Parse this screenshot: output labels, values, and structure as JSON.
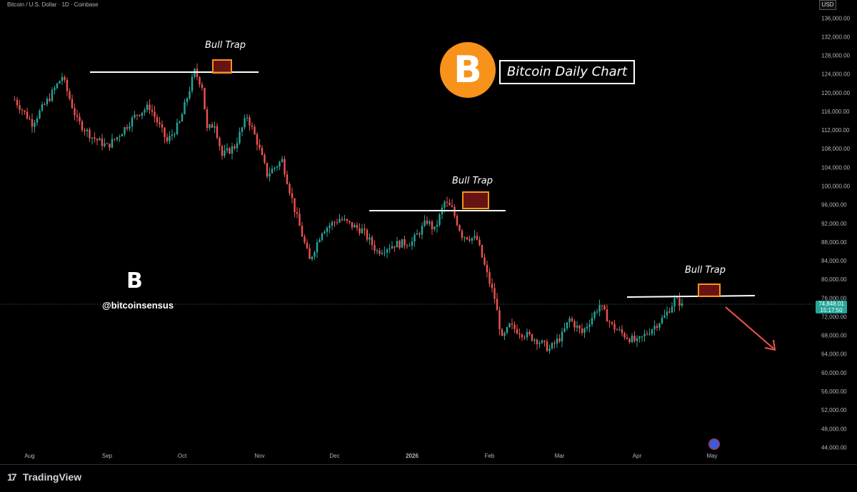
{
  "header": {
    "symbol": "Bitcoin / U.S. Dollar · 1D · Coinbase"
  },
  "currency": "USD",
  "last_price": {
    "value": "74,848.01",
    "countdown": "15:17:50"
  },
  "title_box": "Bitcoin Daily Chart",
  "coin_symbol": "B",
  "watermark": {
    "logo": "B",
    "handle": "@bitcoinsensus"
  },
  "trap_labels": [
    "Bull Trap",
    "Bull Trap",
    "Bull Trap"
  ],
  "footer": {
    "brand": "TradingView"
  },
  "colors": {
    "up": "#26a69a",
    "down": "#ef5350",
    "accent": "#f7931a",
    "trap_fill": "#8b1a1a"
  },
  "chart_data": {
    "type": "candlestick",
    "x_tick_labels": [
      "Aug",
      "Sep",
      "Oct",
      "Nov",
      "Dec",
      "2026",
      "Feb",
      "Mar",
      "Apr",
      "May"
    ],
    "y_ticks": [
      44000,
      48000,
      52000,
      56000,
      60000,
      64000,
      68000,
      72000,
      76000,
      80000,
      84000,
      88000,
      92000,
      96000,
      100000,
      104000,
      108000,
      112000,
      116000,
      120000,
      124000,
      128000,
      132000,
      136000
    ],
    "ylim": [
      42000,
      138000
    ],
    "grid": false,
    "last_close": 74848.01,
    "anchors": [
      [
        "2025-07-26",
        118500
      ],
      [
        "2025-08-02",
        113500
      ],
      [
        "2025-08-09",
        119000
      ],
      [
        "2025-08-14",
        123500
      ],
      [
        "2025-08-20",
        114000
      ],
      [
        "2025-08-26",
        110500
      ],
      [
        "2025-09-01",
        108500
      ],
      [
        "2025-09-05",
        110500
      ],
      [
        "2025-09-13",
        115500
      ],
      [
        "2025-09-18",
        117000
      ],
      [
        "2025-09-25",
        109500
      ],
      [
        "2025-09-30",
        113500
      ],
      [
        "2025-10-06",
        124500
      ],
      [
        "2025-10-09",
        121500
      ],
      [
        "2025-10-11",
        112000
      ],
      [
        "2025-10-14",
        113500
      ],
      [
        "2025-10-17",
        106500
      ],
      [
        "2025-10-22",
        108500
      ],
      [
        "2025-10-27",
        115000
      ],
      [
        "2025-10-31",
        109500
      ],
      [
        "2025-11-04",
        102500
      ],
      [
        "2025-11-10",
        105500
      ],
      [
        "2025-11-15",
        95000
      ],
      [
        "2025-11-21",
        84000
      ],
      [
        "2025-11-26",
        90500
      ],
      [
        "2025-12-03",
        93000
      ],
      [
        "2025-12-08",
        91500
      ],
      [
        "2025-12-12",
        90500
      ],
      [
        "2025-12-18",
        86000
      ],
      [
        "2025-12-25",
        87500
      ],
      [
        "2026-01-01",
        88000
      ],
      [
        "2026-01-07",
        92500
      ],
      [
        "2026-01-10",
        90500
      ],
      [
        "2026-01-14",
        96500
      ],
      [
        "2026-01-17",
        95000
      ],
      [
        "2026-01-21",
        89500
      ],
      [
        "2026-01-27",
        88500
      ],
      [
        "2026-01-31",
        81000
      ],
      [
        "2026-02-03",
        76000
      ],
      [
        "2026-02-06",
        67000
      ],
      [
        "2026-02-09",
        70000
      ],
      [
        "2026-02-14",
        68500
      ],
      [
        "2026-02-20",
        67000
      ],
      [
        "2026-02-25",
        65000
      ],
      [
        "2026-03-02",
        68000
      ],
      [
        "2026-03-05",
        71500
      ],
      [
        "2026-03-10",
        68500
      ],
      [
        "2026-03-17",
        74500
      ],
      [
        "2026-03-22",
        70000
      ],
      [
        "2026-03-27",
        68000
      ],
      [
        "2026-04-01",
        66500
      ],
      [
        "2026-04-07",
        69500
      ],
      [
        "2026-04-12",
        72000
      ],
      [
        "2026-04-16",
        75500
      ],
      [
        "2026-04-19",
        74848
      ]
    ],
    "bull_traps": [
      {
        "date": "2025-10-06",
        "level": 124500
      },
      {
        "date": "2026-01-14",
        "level": 95000
      },
      {
        "date": "2026-04-17",
        "level": 75500
      }
    ]
  }
}
